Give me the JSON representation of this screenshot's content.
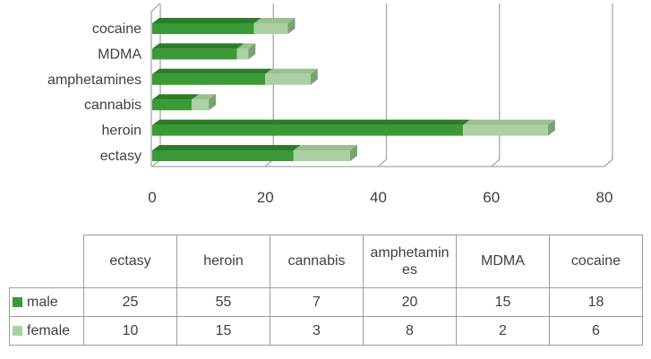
{
  "chart_data": {
    "type": "bar",
    "style": "3d-horizontal-stacked",
    "orientation": "horizontal",
    "stacked": true,
    "title": "",
    "xlabel": "",
    "ylabel": "",
    "categories": [
      "cocaine",
      "MDMA",
      "amphetamines",
      "cannabis",
      "heroin",
      "ectasy"
    ],
    "series": [
      {
        "name": "male",
        "color": "#3a9a35",
        "values": [
          18,
          15,
          20,
          7,
          55,
          25
        ]
      },
      {
        "name": "female",
        "color": "#abd0a3",
        "values": [
          6,
          2,
          8,
          3,
          15,
          10
        ]
      }
    ],
    "xlim": [
      0,
      80
    ],
    "x_ticks": [
      0,
      20,
      40,
      60,
      80
    ],
    "grid": "vertical-major-gridlines",
    "legend_position": "data-table-below-chart"
  },
  "table": {
    "columns": [
      "ectasy",
      "heroin",
      "cannabis",
      "amphetamines",
      "MDMA",
      "cocaine"
    ],
    "rows": [
      {
        "label": "male",
        "values": [
          "25",
          "55",
          "7",
          "20",
          "15",
          "18"
        ]
      },
      {
        "label": "female",
        "values": [
          "10",
          "15",
          "3",
          "8",
          "2",
          "6"
        ]
      }
    ]
  },
  "colors": {
    "male_front": "#3a9a35",
    "male_top": "#2c7d2a",
    "female_front": "#abd0a3",
    "female_top": "#9abf90",
    "female_cap": "#7ba173",
    "frame": "#a6a6a6",
    "text": "#3f3f3f",
    "table_border": "#9c9c9c"
  }
}
